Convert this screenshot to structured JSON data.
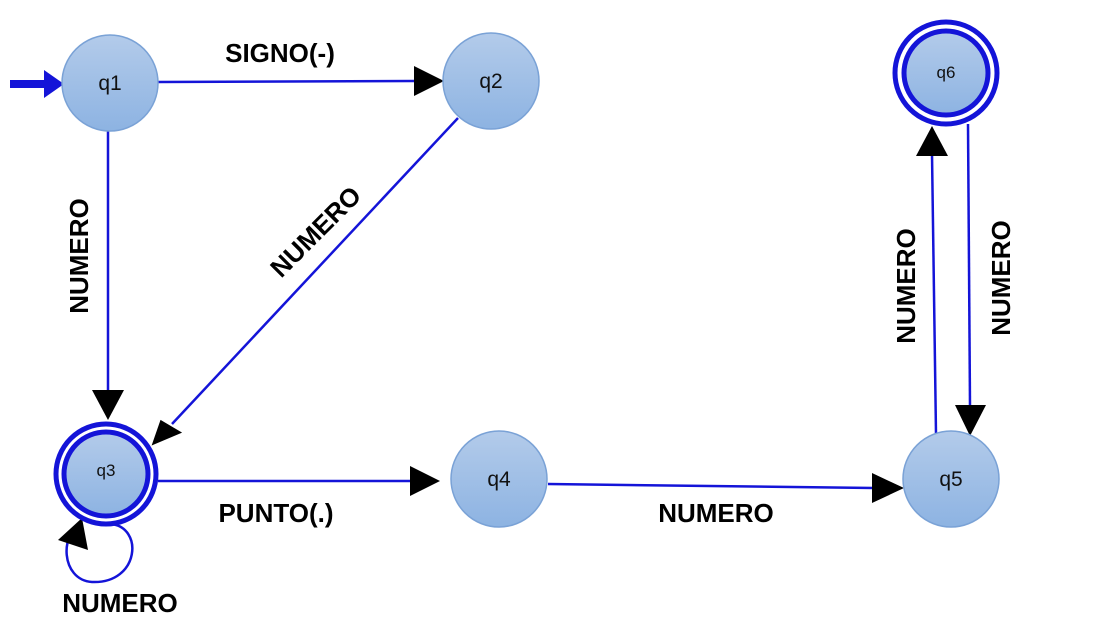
{
  "colors": {
    "edge": "#1414d8",
    "arrowhead": "#000000",
    "state_fill_top": "#b3cbea",
    "state_fill_bottom": "#8db3e2",
    "state_stroke": "#7aa2d6",
    "accept_ring": "#1414d8"
  },
  "states": {
    "q1": "q1",
    "q2": "q2",
    "q3": "q3",
    "q4": "q4",
    "q5": "q5",
    "q6": "q6"
  },
  "edges": {
    "q1_q2": "SIGNO(-)",
    "q1_q3": "NUMERO",
    "q2_q3": "NUMERO",
    "q3_q3": "NUMERO",
    "q3_q4": "PUNTO(.)",
    "q4_q5": "NUMERO",
    "q5_q6": "NUMERO",
    "q6_q5": "NUMERO"
  }
}
